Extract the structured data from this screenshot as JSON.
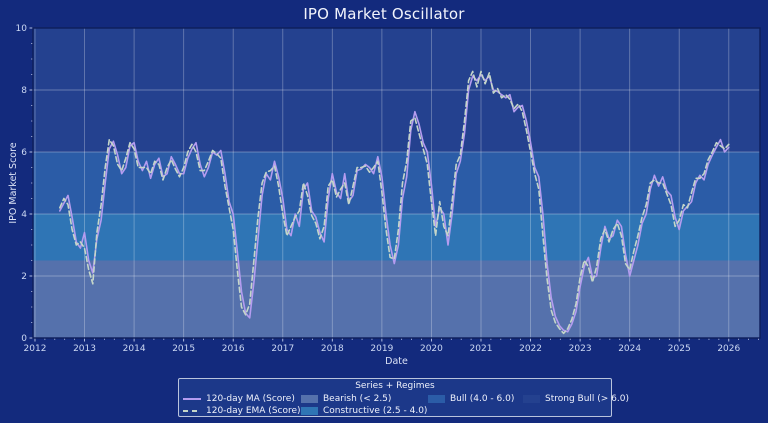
{
  "title": "IPO Market Oscillator",
  "colors": {
    "figure_bg": "#132a7d",
    "plot_border": "#0e1e5b",
    "grid": "rgba(255,255,255,0.30)",
    "tick": "#c2cdea",
    "tick_label": "#ccd8f3",
    "title": "#f2f4fc",
    "axis_label": "#dce3f6",
    "legend_bg": "#1c3889",
    "legend_border": "#b9c3dc",
    "legend_text": "#eef1fb"
  },
  "chart_data": {
    "type": "line",
    "title": "IPO Market Oscillator",
    "xlabel": "Date",
    "ylabel": "IPO Market Score",
    "legend_title": "Series + Regimes",
    "xlim": [
      2011.96,
      2026.63
    ],
    "ylim": [
      0,
      10
    ],
    "x_ticks": [
      2012,
      2013,
      2014,
      2015,
      2016,
      2017,
      2018,
      2019,
      2020,
      2021,
      2022,
      2023,
      2024,
      2025,
      2026
    ],
    "y_ticks": [
      0,
      2,
      4,
      6,
      8,
      10
    ],
    "x_minor_step": 0.2,
    "y_minor_step": 0.5,
    "grid": true,
    "legend_position": "bottom-center",
    "x_start": 2012.5,
    "x_step": 0.0833333,
    "series": [
      {
        "name": "120-day MA (Score)",
        "color": "#b49cf0",
        "style": "solid",
        "values": [
          4.1,
          4.35,
          4.6,
          3.9,
          3.1,
          2.9,
          3.4,
          2.5,
          2.1,
          3.2,
          3.8,
          5.0,
          6.1,
          6.35,
          5.9,
          5.3,
          5.5,
          6.2,
          6.3,
          5.7,
          5.4,
          5.7,
          5.15,
          5.6,
          5.8,
          5.2,
          5.3,
          5.85,
          5.6,
          5.3,
          5.3,
          5.8,
          6.1,
          6.3,
          5.6,
          5.2,
          5.5,
          6.0,
          5.9,
          6.05,
          5.3,
          4.4,
          4.0,
          2.8,
          1.5,
          0.8,
          0.65,
          1.8,
          3.2,
          4.6,
          5.3,
          5.1,
          5.7,
          5.2,
          4.5,
          3.5,
          3.3,
          4.0,
          3.6,
          4.8,
          5.0,
          4.1,
          3.9,
          3.4,
          3.1,
          4.5,
          5.3,
          4.7,
          4.5,
          5.3,
          4.4,
          4.6,
          5.4,
          5.45,
          5.6,
          5.5,
          5.3,
          5.85,
          5.2,
          4.0,
          3.0,
          2.4,
          3.0,
          4.5,
          5.2,
          6.7,
          7.3,
          6.9,
          6.3,
          6.0,
          4.95,
          3.6,
          4.2,
          4.0,
          3.0,
          4.0,
          5.3,
          5.7,
          6.6,
          8.0,
          8.45,
          8.3,
          8.5,
          8.3,
          8.45,
          8.0,
          7.95,
          7.85,
          7.75,
          7.85,
          7.3,
          7.45,
          7.5,
          7.0,
          6.3,
          5.5,
          5.2,
          4.0,
          2.4,
          1.3,
          0.7,
          0.4,
          0.25,
          0.2,
          0.45,
          0.85,
          1.65,
          2.3,
          2.6,
          1.95,
          2.0,
          2.9,
          3.6,
          3.2,
          3.3,
          3.8,
          3.6,
          2.7,
          2.0,
          2.5,
          3.0,
          3.7,
          4.0,
          4.8,
          5.25,
          4.9,
          5.2,
          4.75,
          4.6,
          3.9,
          3.5,
          4.1,
          4.25,
          4.4,
          5.0,
          5.25,
          5.1,
          5.6,
          5.9,
          6.15,
          6.4,
          6.0,
          6.15
        ]
      },
      {
        "name": "120-day EMA (Score)",
        "color": "#c5d6c9",
        "style": "dashed",
        "values": [
          4.2,
          4.5,
          4.3,
          3.5,
          3.0,
          3.1,
          2.9,
          2.2,
          1.75,
          3.4,
          4.3,
          5.5,
          6.4,
          6.2,
          5.6,
          5.4,
          5.8,
          6.3,
          6.1,
          5.5,
          5.5,
          5.5,
          5.3,
          5.7,
          5.6,
          5.1,
          5.5,
          5.75,
          5.45,
          5.2,
          5.5,
          6.0,
          6.25,
          6.0,
          5.4,
          5.4,
          5.7,
          6.05,
          5.95,
          5.8,
          4.9,
          4.2,
          3.5,
          2.2,
          1.0,
          0.75,
          1.1,
          2.5,
          3.9,
          5.0,
          5.35,
          5.4,
          5.55,
          4.9,
          4.0,
          3.3,
          3.6,
          3.9,
          4.1,
          5.0,
          4.6,
          3.95,
          3.7,
          3.2,
          3.6,
          4.9,
          5.1,
          4.55,
          4.8,
          5.0,
          4.3,
          4.9,
          5.5,
          5.5,
          5.55,
          5.35,
          5.5,
          5.7,
          4.7,
          3.5,
          2.6,
          2.55,
          3.5,
          5.0,
          5.7,
          7.0,
          7.1,
          6.6,
          6.1,
          5.6,
          4.4,
          3.3,
          4.4,
          3.6,
          3.3,
          4.4,
          5.6,
          5.9,
          7.0,
          8.3,
          8.6,
          8.1,
          8.6,
          8.2,
          8.55,
          7.9,
          8.05,
          7.75,
          7.85,
          7.7,
          7.4,
          7.55,
          7.3,
          6.7,
          6.0,
          5.3,
          4.8,
          3.3,
          1.9,
          0.9,
          0.5,
          0.3,
          0.15,
          0.3,
          0.6,
          1.1,
          1.95,
          2.5,
          2.3,
          1.8,
          2.3,
          3.2,
          3.5,
          3.1,
          3.5,
          3.7,
          3.3,
          2.4,
          2.2,
          2.8,
          3.3,
          3.9,
          4.3,
          5.0,
          5.1,
          5.0,
          5.0,
          4.65,
          4.3,
          3.6,
          3.8,
          4.3,
          4.2,
          4.7,
          5.15,
          5.15,
          5.3,
          5.75,
          6.0,
          6.3,
          6.2,
          6.1,
          6.25
        ]
      }
    ],
    "regimes": [
      {
        "label": "Bearish (< 2.5)",
        "min": 0,
        "max": 2.5,
        "color": "#5571ac"
      },
      {
        "label": "Constructive (2.5 - 4.0)",
        "min": 2.5,
        "max": 4.0,
        "color": "#2f75b5"
      },
      {
        "label": "Bull (4.0 - 6.0)",
        "min": 4.0,
        "max": 6.0,
        "color": "#2b5ca7"
      },
      {
        "label": "Strong Bull (> 6.0)",
        "min": 6.0,
        "max": 10.0,
        "color": "#24418f"
      }
    ]
  }
}
